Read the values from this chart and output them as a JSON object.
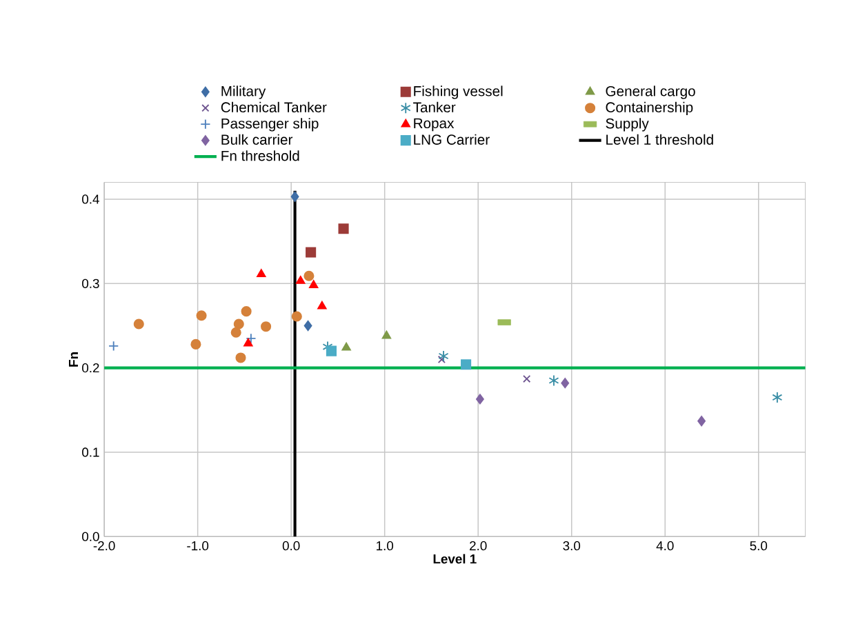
{
  "chart_data": {
    "type": "scatter",
    "xlabel": "Level 1",
    "ylabel": "Fn",
    "xlim": [
      -2.0,
      5.5
    ],
    "ylim": [
      0,
      0.42
    ],
    "xticks": [
      {
        "value": -2,
        "label": "-2.0"
      },
      {
        "value": -1,
        "label": "-1.0"
      },
      {
        "value": 0,
        "label": "0.0"
      },
      {
        "value": 1,
        "label": "1.0"
      },
      {
        "value": 2,
        "label": "2.0"
      },
      {
        "value": 3,
        "label": "3.0"
      },
      {
        "value": 4,
        "label": "4.0"
      },
      {
        "value": 5,
        "label": "5.0"
      }
    ],
    "yticks": [
      {
        "value": 0,
        "label": "0.0"
      },
      {
        "value": 0.1,
        "label": "0.1"
      },
      {
        "value": 0.2,
        "label": "0.2"
      },
      {
        "value": 0.3,
        "label": "0.3"
      },
      {
        "value": 0.4,
        "label": "0.4"
      }
    ],
    "grid": true,
    "legend": "top",
    "series": [
      {
        "name": "Military",
        "type": "scatter",
        "marker": "diamond",
        "color": "#3f6ea6",
        "x": [
          0.04,
          0.18
        ],
        "values": [
          0.403,
          0.25
        ]
      },
      {
        "name": "Fishing vessel",
        "type": "scatter",
        "marker": "square",
        "color": "#9c3b38",
        "x": [
          0.56,
          0.21
        ],
        "values": [
          0.365,
          0.337
        ]
      },
      {
        "name": "General cargo",
        "type": "scatter",
        "marker": "triangle",
        "color": "#7f9a48",
        "x": [
          0.59,
          1.02
        ],
        "values": [
          0.224,
          0.238
        ]
      },
      {
        "name": "Chemical Tanker",
        "type": "scatter",
        "marker": "cross",
        "color": "#6e5590",
        "x": [
          1.61,
          2.52
        ],
        "values": [
          0.21,
          0.187
        ]
      },
      {
        "name": "Tanker",
        "type": "scatter",
        "marker": "cross",
        "color": "#3a8ea6",
        "x": [
          0.39,
          1.63,
          2.81,
          5.2
        ],
        "values": [
          0.225,
          0.214,
          0.185,
          0.165
        ]
      },
      {
        "name": "Containership",
        "type": "scatter",
        "marker": "circle",
        "color": "#d5813a",
        "x": [
          -1.63,
          -0.96,
          -1.02,
          -0.48,
          -0.56,
          -0.59,
          -0.27,
          -0.54,
          0.06,
          0.19
        ],
        "values": [
          0.252,
          0.262,
          0.228,
          0.267,
          0.252,
          0.242,
          0.249,
          0.212,
          0.261,
          0.309
        ]
      },
      {
        "name": "Passenger ship",
        "type": "scatter",
        "marker": "plus",
        "color": "#4f81bd",
        "x": [
          -1.9,
          -0.43
        ],
        "values": [
          0.226,
          0.235
        ]
      },
      {
        "name": "Ropax",
        "type": "scatter",
        "marker": "triangle",
        "color": "#ff0000",
        "x": [
          -0.32,
          0.1,
          0.24,
          0.33,
          -0.46
        ],
        "values": [
          0.311,
          0.303,
          0.298,
          0.273,
          0.229
        ]
      },
      {
        "name": "Supply",
        "type": "scatter",
        "marker": "square",
        "color": "#9bbb59",
        "x": [
          2.28
        ],
        "values": [
          0.254
        ]
      },
      {
        "name": "Bulk carrier",
        "type": "scatter",
        "marker": "diamond",
        "color": "#8064a2",
        "x": [
          2.02,
          2.93,
          4.39
        ],
        "values": [
          0.163,
          0.182,
          0.137
        ]
      },
      {
        "name": "LNG Carrier",
        "type": "scatter",
        "marker": "square",
        "color": "#4bacc6",
        "x": [
          0.43,
          1.87
        ],
        "values": [
          0.22,
          0.204
        ]
      },
      {
        "name": "Level 1 threshold",
        "type": "line",
        "line_style": "solid",
        "color": "#000000",
        "x": [
          0.04,
          0.04
        ],
        "values": [
          0,
          0.41
        ]
      },
      {
        "name": "Fn threshold",
        "type": "line",
        "line_style": "solid",
        "color": "#00b050",
        "x": [
          -2.0,
          5.5
        ],
        "values": [
          0.2,
          0.2
        ]
      }
    ]
  }
}
